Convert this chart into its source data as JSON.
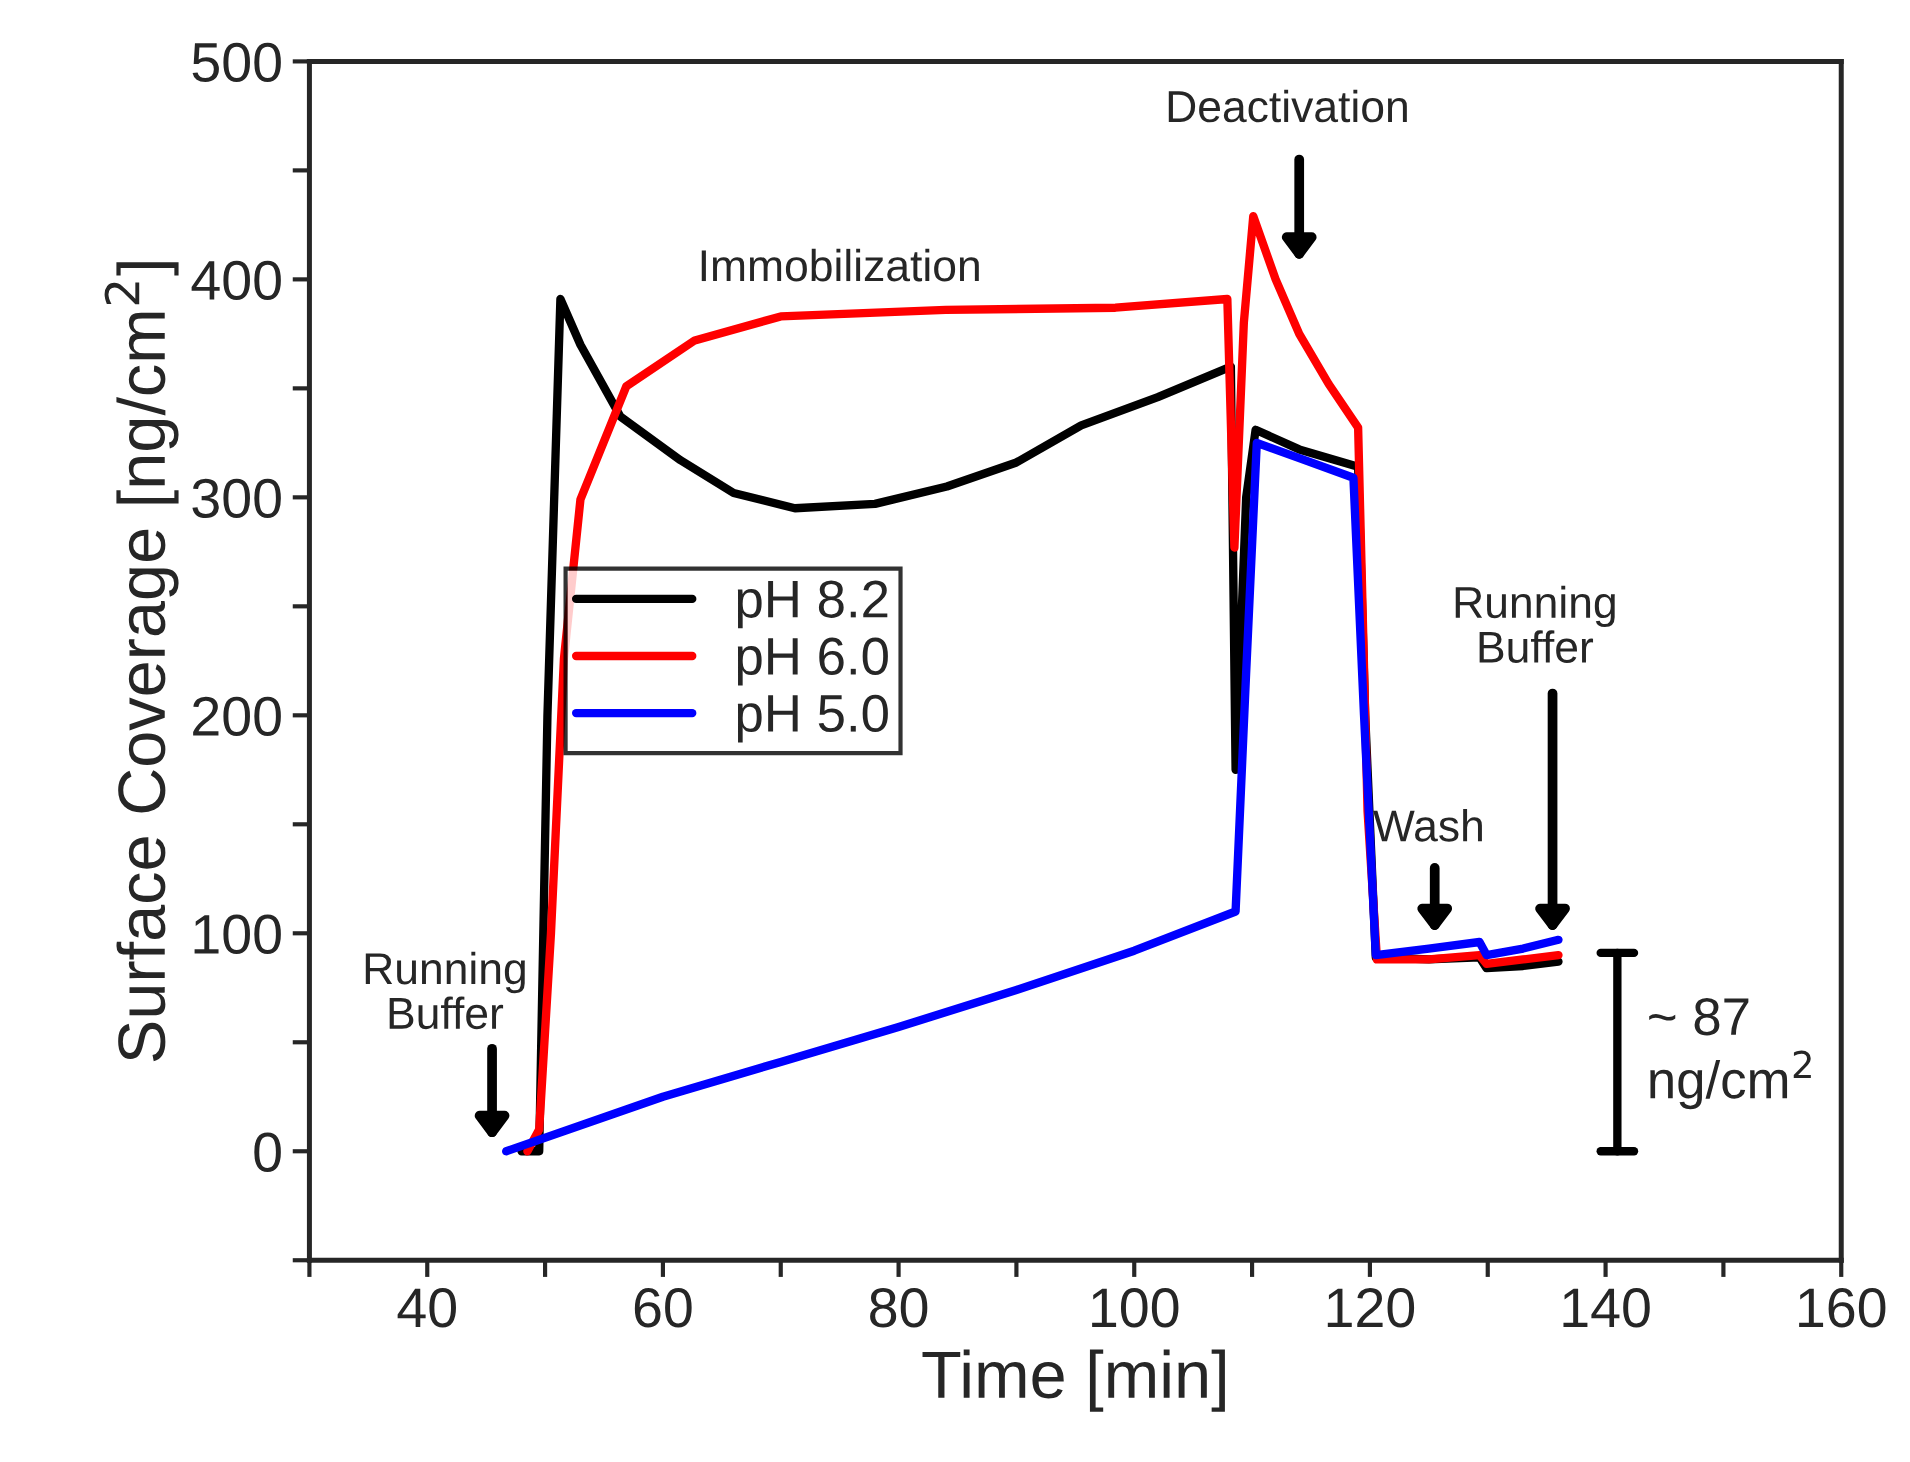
{
  "chart_data": {
    "type": "line",
    "xlabel": "Time [min]",
    "ylabel": "Surface Coverage [ng/cm$^{2}$]",
    "xlim": [
      30,
      160
    ],
    "ylim": [
      -50,
      500
    ],
    "xticks": [
      {
        "value": 30,
        "label": null
      },
      40,
      {
        "value": 50,
        "label": null
      },
      60,
      {
        "value": 70,
        "label": null
      },
      80,
      {
        "value": 90,
        "label": null
      },
      100,
      {
        "value": 110,
        "label": null
      },
      120,
      {
        "value": 130,
        "label": null
      },
      140,
      {
        "value": 150,
        "label": null
      },
      160
    ],
    "yticks": [
      {
        "value": -50,
        "label": null
      },
      0,
      {
        "value": 50,
        "label": null
      },
      100,
      {
        "value": 150,
        "label": null
      },
      200,
      {
        "value": 250,
        "label": null
      },
      300,
      {
        "value": 350,
        "label": null
      },
      400,
      {
        "value": 450,
        "label": null
      },
      500
    ],
    "legend": "center left",
    "grid": false,
    "marker": "none",
    "line_style": "solid",
    "series": [
      {
        "name": "pH 8.2",
        "color": "#000000",
        "x": [
          48,
          49.5,
          50.2,
          51.3,
          53,
          56.4,
          61.5,
          66,
          71.2,
          78,
          84.1,
          90,
          95.5,
          102,
          108.2,
          108.6,
          109.5,
          110.3,
          114,
          119,
          119.6,
          120.5,
          125,
          129.3,
          129.9,
          133,
          136
        ],
        "values": [
          0,
          0,
          200,
          391,
          370,
          337,
          317,
          302,
          295,
          297,
          305,
          316,
          333,
          346,
          360,
          175,
          300,
          331,
          322,
          314,
          200,
          89,
          88,
          89,
          84,
          85,
          87
        ]
      },
      {
        "name": "pH 6.0",
        "color": "#ff0000",
        "x": [
          48.5,
          49.5,
          50.5,
          51.6,
          53,
          56.9,
          62.7,
          70,
          84,
          98.4,
          107.9,
          108.5,
          109.3,
          110.1,
          112,
          114,
          116.5,
          119,
          119.8,
          120.6,
          125,
          129.3,
          129.9,
          133,
          136
        ],
        "values": [
          0,
          10,
          100,
          226,
          299,
          351,
          372,
          383,
          386,
          387,
          391,
          277,
          380,
          429,
          400,
          375,
          352,
          332,
          156,
          88,
          88,
          90,
          86,
          88,
          90
        ]
      },
      {
        "name": "pH 5.0",
        "color": "#0000ff",
        "x": [
          46.7,
          60,
          70,
          80,
          90,
          100,
          108.6,
          109.5,
          110.4,
          114,
          118.6,
          119.5,
          120.5,
          125,
          129.3,
          129.9,
          133,
          136
        ],
        "values": [
          0,
          25,
          41,
          57,
          74,
          92,
          110,
          220,
          325,
          318,
          309,
          200,
          90,
          93,
          96,
          90,
          93,
          97
        ]
      }
    ],
    "annotations": [
      "Immobilization",
      "Deactivation",
      "Running\nBuffer",
      "Wash",
      "Running\nBuffer",
      "~ 87\nng/cm$^{2}$"
    ]
  }
}
